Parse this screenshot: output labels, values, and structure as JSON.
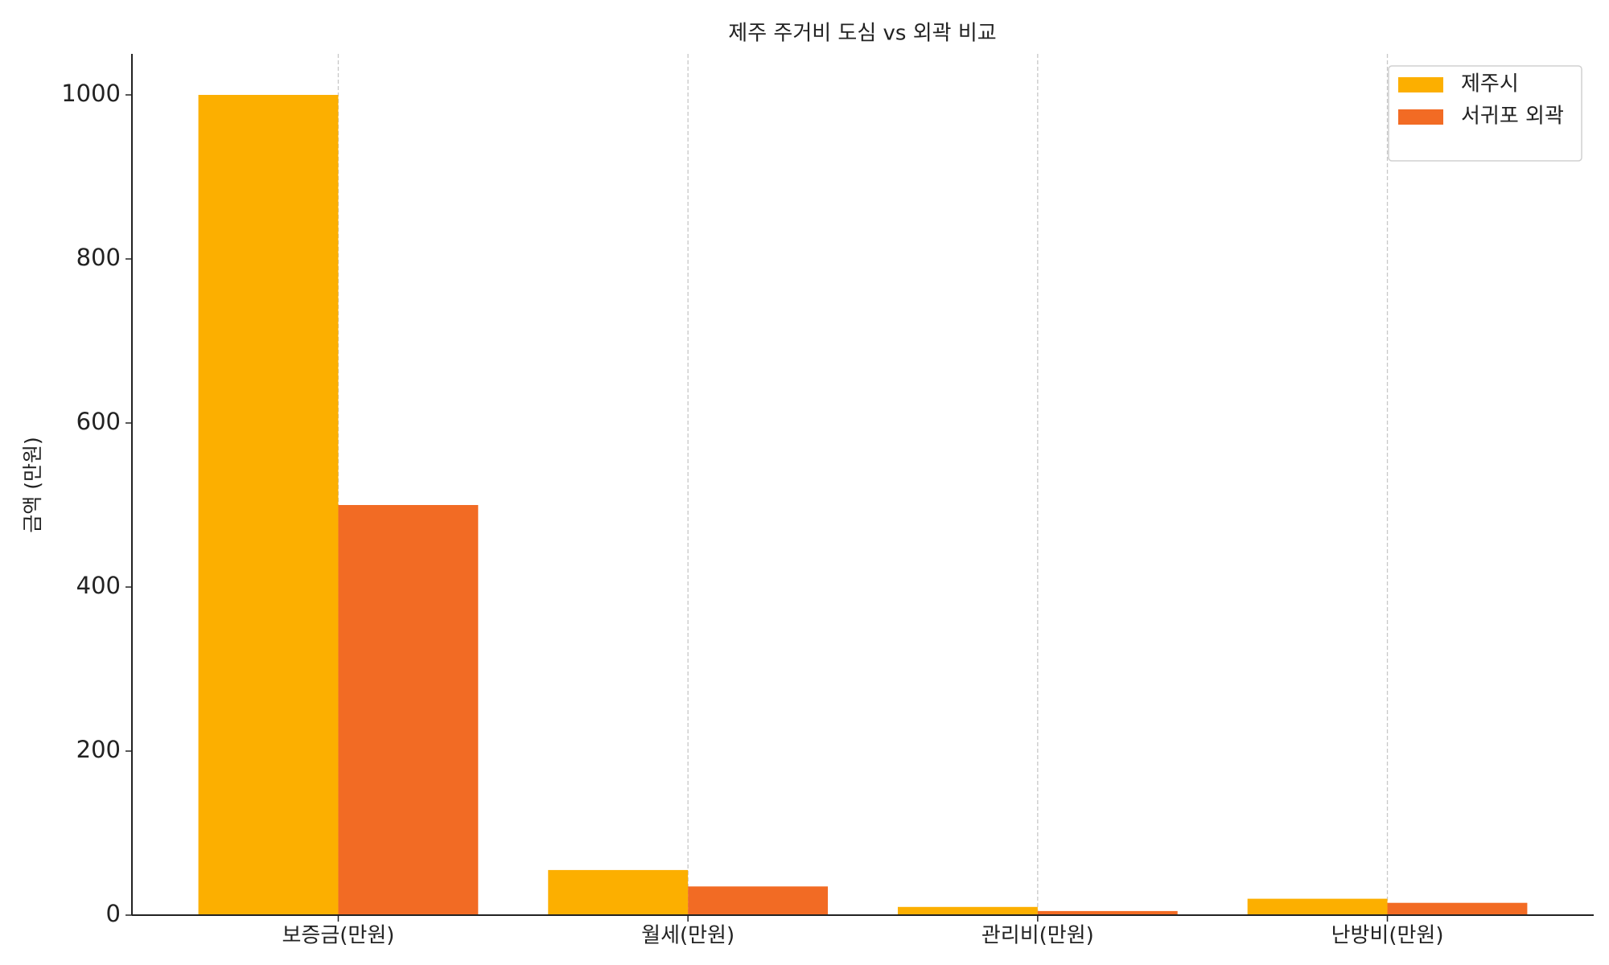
{
  "chart_data": {
    "type": "bar",
    "title": "제주 주거비 도심 vs 외곽 비교",
    "y_label": "금액 (만원)",
    "categories": [
      "보증금(만원)",
      "월세(만원)",
      "관리비(만원)",
      "난방비(만원)"
    ],
    "series": [
      {
        "name": "제주시",
        "color": "#fcaf00",
        "values": [
          1000,
          55,
          10,
          20
        ]
      },
      {
        "name": "서귀포 외곽",
        "color": "#f26b24",
        "values": [
          500,
          35,
          5,
          15
        ]
      }
    ],
    "ylim": [
      0,
      1050
    ],
    "yticks": [
      0,
      200,
      400,
      600,
      800,
      1000
    ],
    "grid": true,
    "legend": "upper right"
  }
}
